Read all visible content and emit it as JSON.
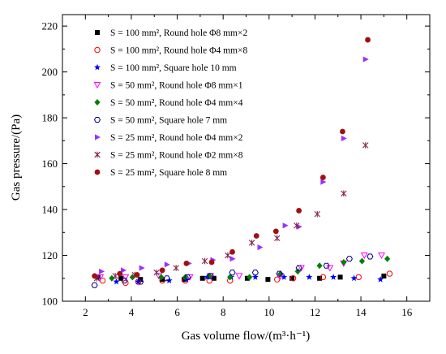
{
  "chart_data": {
    "type": "scatter",
    "xlabel": "Gas volume flow/(m³·h⁻¹)",
    "ylabel": "Gas pressure/(Pa)",
    "xlim": [
      1,
      17
    ],
    "ylim": [
      100,
      225
    ],
    "x_ticks": [
      "2",
      "4",
      "6",
      "8",
      "10",
      "12",
      "14",
      "16"
    ],
    "y_ticks": [
      "100",
      "120",
      "140",
      "160",
      "180",
      "200",
      "220"
    ],
    "legend_position": "top-left",
    "series": [
      {
        "name": "S = 100 mm², Round hole Φ8 mm×2",
        "marker": "square-filled",
        "color": "#000000",
        "points": [
          [
            2.55,
            110.5
          ],
          [
            3.55,
            110.0
          ],
          [
            4.4,
            109.5
          ],
          [
            5.35,
            109.5
          ],
          [
            6.3,
            109.5
          ],
          [
            7.1,
            110.0
          ],
          [
            7.6,
            110.0
          ],
          [
            9.05,
            110.0
          ],
          [
            9.95,
            109.5
          ],
          [
            11.0,
            110.0
          ],
          [
            12.2,
            110.0
          ],
          [
            13.1,
            110.5
          ],
          [
            15.0,
            111.0
          ]
        ]
      },
      {
        "name": "S = 100 mm², Round hole Φ4 mm×8",
        "marker": "circle-open",
        "color": "#ff0000",
        "points": [
          [
            2.75,
            109.0
          ],
          [
            3.75,
            108.0
          ],
          [
            4.3,
            108.5
          ],
          [
            5.35,
            109.0
          ],
          [
            6.35,
            109.0
          ],
          [
            7.4,
            109.0
          ],
          [
            8.3,
            109.0
          ],
          [
            10.35,
            109.5
          ],
          [
            11.05,
            110.0
          ],
          [
            12.35,
            110.5
          ],
          [
            13.9,
            110.5
          ],
          [
            15.25,
            112.0
          ]
        ]
      },
      {
        "name": "S = 100 mm², Square hole 10 mm",
        "marker": "star-filled",
        "color": "#0000ff",
        "points": [
          [
            3.35,
            108.5
          ],
          [
            4.3,
            108.5
          ],
          [
            5.65,
            109.0
          ],
          [
            6.4,
            109.5
          ],
          [
            7.3,
            110.5
          ],
          [
            8.35,
            110.5
          ],
          [
            9.4,
            110.5
          ],
          [
            10.65,
            110.5
          ],
          [
            11.75,
            110.5
          ],
          [
            12.8,
            110.5
          ],
          [
            13.7,
            110.0
          ],
          [
            14.85,
            109.5
          ]
        ]
      },
      {
        "name": "S = 50 mm², Round hole Φ8 mm×1",
        "marker": "triangle-down-open",
        "color": "#ff00ff",
        "points": [
          [
            2.65,
            110.5
          ],
          [
            3.75,
            110.5
          ],
          [
            5.2,
            111.0
          ],
          [
            6.55,
            110.5
          ],
          [
            7.45,
            111.0
          ],
          [
            8.7,
            111.0
          ],
          [
            10.5,
            111.0
          ],
          [
            11.4,
            114.5
          ],
          [
            12.65,
            114.5
          ],
          [
            13.25,
            116.5
          ],
          [
            14.15,
            120.0
          ],
          [
            14.9,
            120.0
          ]
        ]
      },
      {
        "name": "S = 50 mm², Round hole Φ4 mm×4",
        "marker": "diamond-filled",
        "color": "#008000",
        "points": [
          [
            3.15,
            110.0
          ],
          [
            4.05,
            110.5
          ],
          [
            5.3,
            110.5
          ],
          [
            6.35,
            110.5
          ],
          [
            7.4,
            111.0
          ],
          [
            8.3,
            110.5
          ],
          [
            9.15,
            110.5
          ],
          [
            10.5,
            112.0
          ],
          [
            11.25,
            113.0
          ],
          [
            12.2,
            115.5
          ],
          [
            13.25,
            117.0
          ],
          [
            14.05,
            117.5
          ],
          [
            15.15,
            118.5
          ]
        ]
      },
      {
        "name": "S = 50 mm², Square hole 7 mm",
        "marker": "hexagon-open",
        "color": "#00008b",
        "points": [
          [
            2.4,
            107.0
          ],
          [
            3.7,
            109.0
          ],
          [
            4.4,
            108.5
          ],
          [
            5.55,
            110.0
          ],
          [
            6.45,
            110.5
          ],
          [
            7.45,
            111.0
          ],
          [
            8.4,
            112.5
          ],
          [
            9.4,
            112.5
          ],
          [
            10.45,
            112.0
          ],
          [
            11.3,
            114.5
          ],
          [
            12.5,
            115.5
          ],
          [
            13.5,
            118.5
          ],
          [
            14.4,
            119.5
          ]
        ]
      },
      {
        "name": "S = 25 mm², Round hole Φ4 mm×2",
        "marker": "triangle-right-filled",
        "color": "#9b30ff",
        "points": [
          [
            2.7,
            113.0
          ],
          [
            3.65,
            113.5
          ],
          [
            4.45,
            114.5
          ],
          [
            5.55,
            116.0
          ],
          [
            6.5,
            116.5
          ],
          [
            7.55,
            118.0
          ],
          [
            8.4,
            118.5
          ],
          [
            9.6,
            123.5
          ],
          [
            10.7,
            133.0
          ],
          [
            11.3,
            132.5
          ],
          [
            12.35,
            152.0
          ],
          [
            13.25,
            171.0
          ],
          [
            14.2,
            205.5
          ]
        ]
      },
      {
        "name": "S = 25 mm², Round hole Φ2 mm×8",
        "marker": "asterisk",
        "color": "#8b2252",
        "points": [
          [
            2.5,
            110.0
          ],
          [
            3.3,
            111.0
          ],
          [
            4.15,
            111.5
          ],
          [
            5.1,
            112.5
          ],
          [
            5.95,
            114.5
          ],
          [
            7.2,
            117.5
          ],
          [
            8.2,
            120.0
          ],
          [
            9.25,
            125.5
          ],
          [
            10.35,
            127.5
          ],
          [
            11.2,
            133.0
          ],
          [
            12.1,
            138.0
          ],
          [
            13.25,
            147.0
          ],
          [
            14.2,
            168.0
          ]
        ]
      },
      {
        "name": "S = 25 mm², Square hole 8 mm",
        "marker": "circle-filled",
        "color": "#a01010",
        "points": [
          [
            2.4,
            111.0
          ],
          [
            3.5,
            112.0
          ],
          [
            4.25,
            111.5
          ],
          [
            5.35,
            113.5
          ],
          [
            6.4,
            116.5
          ],
          [
            7.5,
            117.0
          ],
          [
            8.4,
            121.5
          ],
          [
            9.45,
            128.5
          ],
          [
            10.3,
            130.5
          ],
          [
            11.3,
            139.5
          ],
          [
            12.35,
            154.0
          ],
          [
            13.2,
            174.0
          ],
          [
            14.3,
            214.0
          ]
        ]
      }
    ]
  }
}
